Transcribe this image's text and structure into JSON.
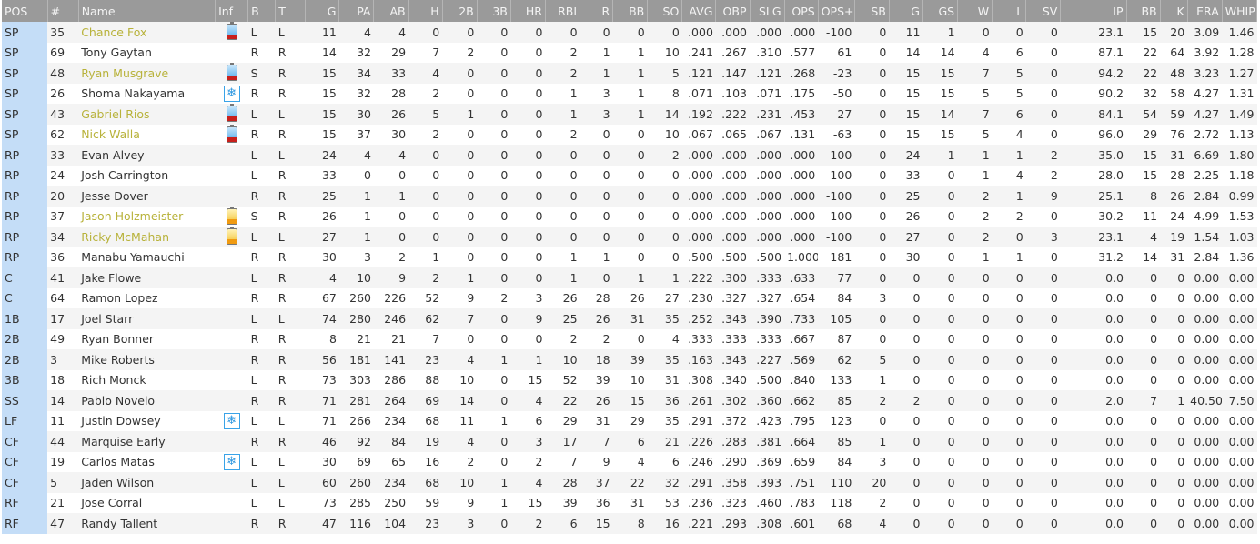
{
  "columns": [
    "POS",
    "#",
    "Name",
    "Inf",
    "B",
    "T",
    "G",
    "PA",
    "AB",
    "H",
    "2B",
    "3B",
    "HR",
    "RBI",
    "R",
    "BB",
    "SO",
    "AVG",
    "OBP",
    "SLG",
    "OPS",
    "OPS+",
    "SB",
    "G",
    "GS",
    "W",
    "L",
    "SV",
    "IP",
    "BB",
    "K",
    "ERA",
    "WHIP"
  ],
  "colors": {
    "header": "#9a9a9a",
    "pos_column": "#c4ddf7",
    "injured_name": "#b8b23a"
  },
  "rows": [
    {
      "injured": true,
      "inf": "battery-low-icon",
      "cells": [
        "SP",
        "35",
        "Chance Fox",
        "",
        "L",
        "L",
        "11",
        "4",
        "4",
        "0",
        "0",
        "0",
        "0",
        "0",
        "0",
        "0",
        "0",
        ".000",
        ".000",
        ".000",
        ".000",
        "-100",
        "0",
        "11",
        "1",
        "0",
        "0",
        "0",
        "23.1",
        "15",
        "20",
        "3.09",
        "1.46"
      ]
    },
    {
      "injured": false,
      "inf": "",
      "cells": [
        "SP",
        "69",
        "Tony Gaytan",
        "",
        "R",
        "R",
        "14",
        "32",
        "29",
        "7",
        "2",
        "0",
        "0",
        "2",
        "1",
        "1",
        "10",
        ".241",
        ".267",
        ".310",
        ".577",
        "61",
        "0",
        "14",
        "14",
        "4",
        "6",
        "0",
        "87.1",
        "22",
        "64",
        "3.92",
        "1.28"
      ]
    },
    {
      "injured": true,
      "inf": "battery-low-icon",
      "cells": [
        "SP",
        "48",
        "Ryan Musgrave",
        "",
        "S",
        "R",
        "15",
        "34",
        "33",
        "4",
        "0",
        "0",
        "0",
        "2",
        "1",
        "1",
        "5",
        ".121",
        ".147",
        ".121",
        ".268",
        "-23",
        "0",
        "15",
        "15",
        "7",
        "5",
        "0",
        "94.2",
        "22",
        "48",
        "3.23",
        "1.27"
      ]
    },
    {
      "injured": false,
      "inf": "snowflake-icon",
      "cells": [
        "SP",
        "26",
        "Shoma Nakayama",
        "",
        "R",
        "R",
        "15",
        "32",
        "28",
        "2",
        "0",
        "0",
        "0",
        "1",
        "3",
        "1",
        "8",
        ".071",
        ".103",
        ".071",
        ".175",
        "-50",
        "0",
        "15",
        "15",
        "5",
        "5",
        "0",
        "90.2",
        "32",
        "58",
        "4.27",
        "1.31"
      ]
    },
    {
      "injured": true,
      "inf": "battery-low-icon",
      "cells": [
        "SP",
        "43",
        "Gabriel Rios",
        "",
        "L",
        "L",
        "15",
        "30",
        "26",
        "5",
        "1",
        "0",
        "0",
        "1",
        "3",
        "1",
        "14",
        ".192",
        ".222",
        ".231",
        ".453",
        "27",
        "0",
        "15",
        "14",
        "7",
        "6",
        "0",
        "84.1",
        "54",
        "59",
        "4.27",
        "1.49"
      ]
    },
    {
      "injured": true,
      "inf": "battery-low-icon",
      "cells": [
        "SP",
        "62",
        "Nick Walla",
        "",
        "R",
        "R",
        "15",
        "37",
        "30",
        "2",
        "0",
        "0",
        "0",
        "2",
        "0",
        "0",
        "10",
        ".067",
        ".065",
        ".067",
        ".131",
        "-63",
        "0",
        "15",
        "15",
        "5",
        "4",
        "0",
        "96.0",
        "29",
        "76",
        "2.72",
        "1.13"
      ]
    },
    {
      "injured": false,
      "inf": "",
      "cells": [
        "RP",
        "33",
        "Evan Alvey",
        "",
        "L",
        "L",
        "24",
        "4",
        "4",
        "0",
        "0",
        "0",
        "0",
        "0",
        "0",
        "0",
        "2",
        ".000",
        ".000",
        ".000",
        ".000",
        "-100",
        "0",
        "24",
        "1",
        "1",
        "1",
        "2",
        "35.0",
        "15",
        "31",
        "6.69",
        "1.80"
      ]
    },
    {
      "injured": false,
      "inf": "",
      "cells": [
        "RP",
        "24",
        "Josh Carrington",
        "",
        "L",
        "R",
        "33",
        "0",
        "0",
        "0",
        "0",
        "0",
        "0",
        "0",
        "0",
        "0",
        "0",
        ".000",
        ".000",
        ".000",
        ".000",
        "-100",
        "0",
        "33",
        "0",
        "1",
        "4",
        "2",
        "28.0",
        "15",
        "28",
        "2.25",
        "1.18"
      ]
    },
    {
      "injured": false,
      "inf": "",
      "cells": [
        "RP",
        "20",
        "Jesse Dover",
        "",
        "R",
        "R",
        "25",
        "1",
        "1",
        "0",
        "0",
        "0",
        "0",
        "0",
        "0",
        "0",
        "0",
        ".000",
        ".000",
        ".000",
        ".000",
        "-100",
        "0",
        "25",
        "0",
        "2",
        "1",
        "9",
        "25.1",
        "8",
        "26",
        "2.84",
        "0.99"
      ]
    },
    {
      "injured": true,
      "inf": "battery-half-icon",
      "cells": [
        "RP",
        "37",
        "Jason Holzmeister",
        "",
        "S",
        "R",
        "26",
        "1",
        "0",
        "0",
        "0",
        "0",
        "0",
        "0",
        "0",
        "0",
        "0",
        ".000",
        ".000",
        ".000",
        ".000",
        "-100",
        "0",
        "26",
        "0",
        "2",
        "2",
        "0",
        "30.2",
        "11",
        "24",
        "4.99",
        "1.53"
      ]
    },
    {
      "injured": true,
      "inf": "battery-half-icon",
      "cells": [
        "RP",
        "34",
        "Ricky McMahan",
        "",
        "L",
        "L",
        "27",
        "1",
        "0",
        "0",
        "0",
        "0",
        "0",
        "0",
        "0",
        "0",
        "0",
        ".000",
        ".000",
        ".000",
        ".000",
        "-100",
        "0",
        "27",
        "0",
        "2",
        "0",
        "3",
        "23.1",
        "4",
        "19",
        "1.54",
        "1.03"
      ]
    },
    {
      "injured": false,
      "inf": "",
      "cells": [
        "RP",
        "36",
        "Manabu Yamauchi",
        "",
        "R",
        "R",
        "30",
        "3",
        "2",
        "1",
        "0",
        "0",
        "0",
        "1",
        "1",
        "0",
        "0",
        ".500",
        ".500",
        ".500",
        "1.000",
        "181",
        "0",
        "30",
        "0",
        "1",
        "1",
        "0",
        "31.2",
        "14",
        "31",
        "2.84",
        "1.36"
      ]
    },
    {
      "injured": false,
      "inf": "",
      "cells": [
        "C",
        "41",
        "Jake Flowe",
        "",
        "L",
        "R",
        "4",
        "10",
        "9",
        "2",
        "1",
        "0",
        "0",
        "1",
        "0",
        "1",
        "1",
        ".222",
        ".300",
        ".333",
        ".633",
        "77",
        "0",
        "0",
        "0",
        "0",
        "0",
        "0",
        "0.0",
        "0",
        "0",
        "0.00",
        "0.00"
      ]
    },
    {
      "injured": false,
      "inf": "",
      "cells": [
        "C",
        "64",
        "Ramon Lopez",
        "",
        "R",
        "R",
        "67",
        "260",
        "226",
        "52",
        "9",
        "2",
        "3",
        "26",
        "28",
        "26",
        "27",
        ".230",
        ".327",
        ".327",
        ".654",
        "84",
        "3",
        "0",
        "0",
        "0",
        "0",
        "0",
        "0.0",
        "0",
        "0",
        "0.00",
        "0.00"
      ]
    },
    {
      "injured": false,
      "inf": "",
      "cells": [
        "1B",
        "17",
        "Joel Starr",
        "",
        "L",
        "L",
        "74",
        "280",
        "246",
        "62",
        "7",
        "0",
        "9",
        "25",
        "26",
        "31",
        "35",
        ".252",
        ".343",
        ".390",
        ".733",
        "105",
        "0",
        "0",
        "0",
        "0",
        "0",
        "0",
        "0.0",
        "0",
        "0",
        "0.00",
        "0.00"
      ]
    },
    {
      "injured": false,
      "inf": "",
      "cells": [
        "2B",
        "49",
        "Ryan Bonner",
        "",
        "R",
        "R",
        "8",
        "21",
        "21",
        "7",
        "0",
        "0",
        "0",
        "2",
        "2",
        "0",
        "4",
        ".333",
        ".333",
        ".333",
        ".667",
        "87",
        "0",
        "0",
        "0",
        "0",
        "0",
        "0",
        "0.0",
        "0",
        "0",
        "0.00",
        "0.00"
      ]
    },
    {
      "injured": false,
      "inf": "",
      "cells": [
        "2B",
        "3",
        "Mike Roberts",
        "",
        "R",
        "R",
        "56",
        "181",
        "141",
        "23",
        "4",
        "1",
        "1",
        "10",
        "18",
        "39",
        "35",
        ".163",
        ".343",
        ".227",
        ".569",
        "62",
        "5",
        "0",
        "0",
        "0",
        "0",
        "0",
        "0.0",
        "0",
        "0",
        "0.00",
        "0.00"
      ]
    },
    {
      "injured": false,
      "inf": "",
      "cells": [
        "3B",
        "18",
        "Rich Monck",
        "",
        "L",
        "R",
        "73",
        "303",
        "286",
        "88",
        "10",
        "0",
        "15",
        "52",
        "39",
        "10",
        "31",
        ".308",
        ".340",
        ".500",
        ".840",
        "133",
        "1",
        "0",
        "0",
        "0",
        "0",
        "0",
        "0.0",
        "0",
        "0",
        "0.00",
        "0.00"
      ]
    },
    {
      "injured": false,
      "inf": "",
      "cells": [
        "SS",
        "14",
        "Pablo Novelo",
        "",
        "R",
        "R",
        "71",
        "281",
        "264",
        "69",
        "14",
        "0",
        "4",
        "22",
        "26",
        "15",
        "36",
        ".261",
        ".302",
        ".360",
        ".662",
        "85",
        "2",
        "2",
        "0",
        "0",
        "0",
        "0",
        "2.0",
        "7",
        "1",
        "40.50",
        "7.50"
      ]
    },
    {
      "injured": false,
      "inf": "snowflake-icon",
      "cells": [
        "LF",
        "11",
        "Justin Dowsey",
        "",
        "L",
        "L",
        "71",
        "266",
        "234",
        "68",
        "11",
        "1",
        "6",
        "29",
        "31",
        "29",
        "35",
        ".291",
        ".372",
        ".423",
        ".795",
        "123",
        "0",
        "0",
        "0",
        "0",
        "0",
        "0",
        "0.0",
        "0",
        "0",
        "0.00",
        "0.00"
      ]
    },
    {
      "injured": false,
      "inf": "",
      "cells": [
        "CF",
        "44",
        "Marquise Early",
        "",
        "R",
        "R",
        "46",
        "92",
        "84",
        "19",
        "4",
        "0",
        "3",
        "17",
        "7",
        "6",
        "21",
        ".226",
        ".283",
        ".381",
        ".664",
        "85",
        "1",
        "0",
        "0",
        "0",
        "0",
        "0",
        "0.0",
        "0",
        "0",
        "0.00",
        "0.00"
      ]
    },
    {
      "injured": false,
      "inf": "snowflake-icon",
      "cells": [
        "CF",
        "19",
        "Carlos Matas",
        "",
        "L",
        "L",
        "30",
        "69",
        "65",
        "16",
        "2",
        "0",
        "2",
        "7",
        "9",
        "4",
        "6",
        ".246",
        ".290",
        ".369",
        ".659",
        "84",
        "3",
        "0",
        "0",
        "0",
        "0",
        "0",
        "0.0",
        "0",
        "0",
        "0.00",
        "0.00"
      ]
    },
    {
      "injured": false,
      "inf": "",
      "cells": [
        "CF",
        "5",
        "Jaden Wilson",
        "",
        "L",
        "L",
        "60",
        "260",
        "234",
        "68",
        "10",
        "1",
        "4",
        "28",
        "37",
        "22",
        "32",
        ".291",
        ".358",
        ".393",
        ".751",
        "110",
        "20",
        "0",
        "0",
        "0",
        "0",
        "0",
        "0.0",
        "0",
        "0",
        "0.00",
        "0.00"
      ]
    },
    {
      "injured": false,
      "inf": "",
      "cells": [
        "RF",
        "21",
        "Jose Corral",
        "",
        "L",
        "L",
        "73",
        "285",
        "250",
        "59",
        "9",
        "1",
        "15",
        "39",
        "36",
        "31",
        "53",
        ".236",
        ".323",
        ".460",
        ".783",
        "118",
        "2",
        "0",
        "0",
        "0",
        "0",
        "0",
        "0.0",
        "0",
        "0",
        "0.00",
        "0.00"
      ]
    },
    {
      "injured": false,
      "inf": "",
      "cells": [
        "RF",
        "47",
        "Randy Tallent",
        "",
        "R",
        "R",
        "47",
        "116",
        "104",
        "23",
        "3",
        "0",
        "2",
        "6",
        "15",
        "8",
        "16",
        ".221",
        ".293",
        ".308",
        ".601",
        "68",
        "4",
        "0",
        "0",
        "0",
        "0",
        "0",
        "0.0",
        "0",
        "0",
        "0.00",
        "0.00"
      ]
    }
  ]
}
